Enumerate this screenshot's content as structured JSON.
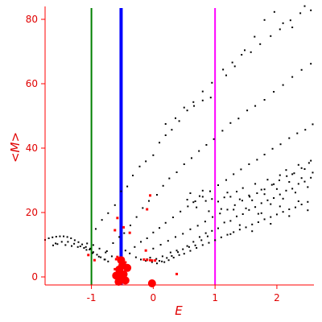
{
  "chart_data": {
    "type": "scatter",
    "title": "",
    "xlabel": "E",
    "ylabel": "<M>",
    "xlim": [
      -1.75,
      2.6
    ],
    "ylim": [
      -2.5,
      84
    ],
    "grid": false,
    "x_ticks": [
      -1,
      0,
      1,
      2
    ],
    "y_ticks": [
      0,
      20,
      40,
      60,
      80
    ],
    "colors": {
      "axis": "#ff0000",
      "points": "#000000",
      "highlight": "#ff0000",
      "vline_left": "#008000",
      "vline_mid": "#0000ff",
      "vline_right": "#ff00ff"
    },
    "vertical_lines": [
      {
        "x": -1.0,
        "color": "#008000"
      },
      {
        "x": -0.52,
        "color": "#0000ff"
      },
      {
        "x": 1.0,
        "color": "#ff00ff"
      }
    ],
    "series": [
      {
        "points": [
          [
            -1.75,
            11.5
          ],
          [
            -1.69,
            12.0
          ],
          [
            -1.63,
            12.3
          ],
          [
            -1.57,
            12.5
          ],
          [
            -1.51,
            12.6
          ],
          [
            -1.45,
            12.6
          ],
          [
            -1.39,
            12.4
          ],
          [
            -1.33,
            12.0
          ],
          [
            -1.27,
            11.4
          ],
          [
            -1.21,
            10.8
          ],
          [
            -1.15,
            10.1
          ],
          [
            -1.09,
            9.3
          ],
          [
            -1.03,
            8.5
          ],
          [
            -0.97,
            7.7
          ],
          [
            -0.91,
            6.9
          ],
          [
            -0.85,
            6.1
          ],
          [
            -0.79,
            5.4
          ],
          [
            -0.73,
            4.8
          ],
          [
            -1.58,
            10.4
          ],
          [
            -1.48,
            10.9
          ],
          [
            -1.38,
            10.9
          ],
          [
            -1.28,
            10.3
          ],
          [
            -1.18,
            9.5
          ],
          [
            -1.08,
            8.4
          ],
          [
            -0.98,
            7.4
          ],
          [
            -0.88,
            6.3
          ],
          [
            -0.78,
            5.4
          ],
          [
            -1.07,
            10.4
          ],
          [
            -0.97,
            9.9
          ],
          [
            -0.87,
            8.8
          ],
          [
            -0.77,
            7.6
          ],
          [
            -0.67,
            6.4
          ],
          [
            -0.93,
            14.9
          ],
          [
            -0.83,
            17.7
          ],
          [
            -0.73,
            19.8
          ],
          [
            -0.62,
            22.3
          ],
          [
            -0.52,
            26.6
          ],
          [
            -0.42,
            28.1
          ],
          [
            -0.33,
            31.5
          ],
          [
            -0.22,
            34.3
          ],
          [
            -0.12,
            35.9
          ],
          [
            0.0,
            37.8
          ],
          [
            0.1,
            41.7
          ],
          [
            0.2,
            44.0
          ],
          [
            0.3,
            45.7
          ],
          [
            0.42,
            48.4
          ],
          [
            0.55,
            51.7
          ],
          [
            0.66,
            53.1
          ],
          [
            0.8,
            54.8
          ],
          [
            0.93,
            55.7
          ],
          [
            1.18,
            62.6
          ],
          [
            1.32,
            65.4
          ],
          [
            1.48,
            70.4
          ],
          [
            1.64,
            74.6
          ],
          [
            1.8,
            79.8
          ],
          [
            1.96,
            82.3
          ],
          [
            2.1,
            78.8
          ],
          [
            2.25,
            77.5
          ],
          [
            2.45,
            84.1
          ],
          [
            0.2,
            47.5
          ],
          [
            0.36,
            49.3
          ],
          [
            0.5,
            52.6
          ],
          [
            0.65,
            54.3
          ],
          [
            0.8,
            57.6
          ],
          [
            0.95,
            60.3
          ],
          [
            1.13,
            64.4
          ],
          [
            1.28,
            66.6
          ],
          [
            1.43,
            69.0
          ],
          [
            1.58,
            69.8
          ],
          [
            1.73,
            72.3
          ],
          [
            1.9,
            74.8
          ],
          [
            2.05,
            76.9
          ],
          [
            2.22,
            79.7
          ],
          [
            2.38,
            81.9
          ],
          [
            2.55,
            82.8
          ],
          [
            -0.75,
            8.0
          ],
          [
            -0.65,
            10.5
          ],
          [
            -0.55,
            12.4
          ],
          [
            -0.47,
            13.6
          ],
          [
            -0.37,
            16.0
          ],
          [
            -0.27,
            18.6
          ],
          [
            -0.17,
            21.4
          ],
          [
            -0.07,
            23.6
          ],
          [
            0.06,
            25.5
          ],
          [
            0.16,
            28.3
          ],
          [
            0.26,
            30.6
          ],
          [
            0.38,
            32.5
          ],
          [
            0.5,
            35.0
          ],
          [
            0.62,
            36.9
          ],
          [
            0.74,
            39.1
          ],
          [
            0.86,
            41.0
          ],
          [
            0.98,
            42.8
          ],
          [
            1.12,
            45.4
          ],
          [
            1.25,
            47.8
          ],
          [
            1.38,
            49.2
          ],
          [
            1.52,
            51.7
          ],
          [
            1.65,
            53.1
          ],
          [
            1.8,
            55.0
          ],
          [
            1.95,
            57.5
          ],
          [
            2.1,
            59.6
          ],
          [
            2.25,
            62.1
          ],
          [
            2.4,
            64.3
          ],
          [
            2.55,
            66.2
          ],
          [
            -0.3,
            9.3
          ],
          [
            -0.2,
            10.9
          ],
          [
            -0.1,
            12.0
          ],
          [
            0.0,
            13.8
          ],
          [
            0.1,
            15.2
          ],
          [
            0.2,
            16.8
          ],
          [
            0.32,
            18.5
          ],
          [
            0.44,
            20.3
          ],
          [
            0.56,
            21.9
          ],
          [
            0.68,
            23.5
          ],
          [
            0.8,
            24.9
          ],
          [
            0.92,
            26.6
          ],
          [
            1.05,
            28.5
          ],
          [
            1.18,
            30.1
          ],
          [
            1.3,
            31.9
          ],
          [
            1.42,
            33.4
          ],
          [
            1.55,
            35.0
          ],
          [
            1.68,
            36.4
          ],
          [
            1.8,
            38.0
          ],
          [
            1.93,
            39.8
          ],
          [
            2.06,
            41.2
          ],
          [
            2.2,
            43.1
          ],
          [
            2.33,
            44.6
          ],
          [
            2.46,
            45.7
          ],
          [
            2.58,
            47.4
          ],
          [
            0.0,
            8.8
          ],
          [
            0.12,
            10.0
          ],
          [
            0.24,
            11.2
          ],
          [
            0.36,
            12.4
          ],
          [
            0.48,
            13.4
          ],
          [
            0.6,
            14.8
          ],
          [
            0.72,
            15.9
          ],
          [
            0.84,
            17.2
          ],
          [
            0.96,
            18.6
          ],
          [
            1.08,
            19.7
          ],
          [
            1.2,
            20.9
          ],
          [
            1.32,
            22.3
          ],
          [
            1.44,
            23.7
          ],
          [
            1.56,
            24.9
          ],
          [
            1.68,
            26.0
          ],
          [
            1.8,
            27.2
          ],
          [
            1.92,
            28.6
          ],
          [
            2.04,
            30.0
          ],
          [
            2.16,
            31.3
          ],
          [
            2.28,
            32.2
          ],
          [
            2.4,
            33.8
          ],
          [
            2.52,
            35.4
          ],
          [
            0.1,
            5.0
          ],
          [
            0.18,
            4.6
          ],
          [
            0.25,
            5.2
          ],
          [
            0.33,
            6.0
          ],
          [
            0.42,
            6.8
          ],
          [
            0.5,
            7.2
          ],
          [
            0.6,
            8.1
          ],
          [
            0.7,
            9.0
          ],
          [
            0.8,
            9.9
          ],
          [
            0.9,
            10.6
          ],
          [
            1.0,
            11.4
          ],
          [
            1.1,
            12.3
          ],
          [
            1.2,
            13.1
          ],
          [
            1.3,
            13.9
          ],
          [
            1.4,
            14.7
          ],
          [
            1.5,
            15.4
          ],
          [
            1.6,
            16.3
          ],
          [
            1.7,
            17.0
          ],
          [
            1.8,
            17.9
          ],
          [
            1.9,
            18.6
          ],
          [
            2.0,
            19.4
          ],
          [
            2.1,
            20.2
          ],
          [
            2.2,
            21.0
          ],
          [
            2.3,
            21.6
          ],
          [
            2.4,
            22.5
          ],
          [
            2.5,
            23.3
          ],
          [
            -0.1,
            5.5
          ],
          [
            -0.05,
            6.0
          ],
          [
            0.05,
            5.6
          ],
          [
            0.15,
            6.4
          ],
          [
            0.28,
            7.6
          ],
          [
            0.38,
            8.2
          ],
          [
            0.55,
            9.6
          ],
          [
            0.65,
            10.9
          ],
          [
            0.75,
            12.4
          ],
          [
            0.85,
            13.6
          ],
          [
            0.95,
            14.3
          ],
          [
            1.05,
            15.1
          ],
          [
            1.15,
            16.9
          ],
          [
            1.25,
            17.4
          ],
          [
            1.35,
            18.8
          ],
          [
            1.45,
            19.5
          ],
          [
            1.55,
            20.8
          ],
          [
            1.65,
            21.7
          ],
          [
            1.75,
            22.9
          ],
          [
            1.85,
            23.8
          ],
          [
            1.95,
            24.5
          ],
          [
            2.05,
            25.6
          ],
          [
            2.15,
            26.8
          ],
          [
            2.25,
            27.4
          ],
          [
            2.35,
            28.9
          ],
          [
            2.45,
            29.6
          ],
          [
            2.55,
            30.8
          ],
          [
            0.55,
            24.0
          ],
          [
            0.65,
            23.2
          ],
          [
            0.75,
            25.1
          ],
          [
            0.85,
            23.6
          ],
          [
            0.95,
            24.2
          ],
          [
            1.05,
            23.4
          ],
          [
            1.15,
            24.7
          ],
          [
            1.25,
            24.9
          ],
          [
            1.35,
            26.5
          ],
          [
            1.45,
            27.6
          ],
          [
            1.55,
            25.3
          ],
          [
            1.65,
            28.9
          ],
          [
            1.75,
            27.1
          ],
          [
            1.85,
            30.2
          ],
          [
            1.95,
            28.8
          ],
          [
            2.05,
            31.6
          ],
          [
            2.15,
            33.2
          ],
          [
            2.25,
            31.9
          ],
          [
            2.35,
            34.8
          ],
          [
            2.45,
            33.5
          ],
          [
            2.55,
            36.1
          ],
          [
            0.6,
            26.0
          ],
          [
            0.7,
            21.6
          ],
          [
            0.8,
            26.8
          ],
          [
            0.9,
            20.4
          ],
          [
            1.1,
            21.1
          ],
          [
            1.2,
            26.2
          ],
          [
            1.3,
            20.9
          ],
          [
            1.4,
            24.1
          ],
          [
            1.5,
            21.3
          ],
          [
            1.6,
            23.8
          ],
          [
            1.7,
            19.6
          ],
          [
            1.8,
            25.7
          ],
          [
            1.9,
            22.6
          ],
          [
            2.0,
            27.3
          ],
          [
            2.1,
            24.3
          ],
          [
            2.2,
            29.5
          ],
          [
            2.3,
            26.2
          ],
          [
            2.4,
            30.7
          ],
          [
            2.5,
            27.9
          ],
          [
            2.58,
            32.4
          ],
          [
            1.25,
            13.3
          ],
          [
            1.4,
            16.1
          ],
          [
            1.6,
            14.2
          ],
          [
            1.75,
            19.8
          ],
          [
            1.9,
            16.5
          ],
          [
            2.05,
            21.9
          ],
          [
            2.2,
            18.9
          ],
          [
            2.35,
            23.5
          ],
          [
            2.5,
            20.7
          ],
          [
            -0.45,
            8.2
          ],
          [
            -0.38,
            7.3
          ],
          [
            -0.28,
            6.1
          ],
          [
            -0.2,
            5.4
          ],
          [
            -0.12,
            5.0
          ],
          [
            -0.02,
            4.6
          ],
          [
            0.06,
            4.2
          ],
          [
            0.14,
            4.8
          ],
          [
            0.22,
            5.9
          ],
          [
            0.3,
            6.5
          ],
          [
            0.4,
            7.7
          ],
          [
            0.48,
            8.6
          ],
          [
            0.58,
            9.3
          ],
          [
            0.68,
            9.8
          ],
          [
            0.78,
            11.4
          ],
          [
            0.88,
            12.6
          ],
          [
            -1.55,
            10.2
          ],
          [
            -1.62,
            9.8
          ],
          [
            -1.42,
            9.9
          ],
          [
            -1.32,
            9.6
          ],
          [
            -1.22,
            9.3
          ],
          [
            -1.12,
            9.0
          ],
          [
            -1.02,
            8.8
          ]
        ]
      },
      {
        "name": "",
        "points": [
          [
            -1.05,
            6.8
          ],
          [
            -0.95,
            5.2
          ],
          [
            -0.62,
            14.5
          ],
          [
            -0.58,
            18.3
          ],
          [
            -0.48,
            15.4
          ],
          [
            -0.38,
            13.7
          ],
          [
            -0.1,
            21.0
          ],
          [
            -0.05,
            25.3
          ],
          [
            -0.12,
            8.2
          ],
          [
            -0.15,
            5.4
          ],
          [
            -0.1,
            5.3
          ],
          [
            -0.05,
            5.2
          ],
          [
            -0.02,
            5.1
          ],
          [
            0.03,
            5.1
          ],
          [
            -0.58,
            6.2
          ],
          [
            -0.6,
            5.5
          ],
          [
            -0.5,
            3.2
          ],
          [
            -0.48,
            1.5
          ],
          [
            -0.55,
            0.8
          ],
          [
            -0.52,
            0.3
          ],
          [
            -0.45,
            1.0
          ],
          [
            -0.02,
            -2.3
          ],
          [
            -0.45,
            4.5
          ],
          [
            -0.62,
            2.4
          ],
          [
            0.38,
            0.9
          ]
        ]
      }
    ],
    "blob_points": [
      [
        -0.52,
        5.2
      ],
      [
        -0.5,
        3.5
      ],
      [
        -0.55,
        2.3
      ],
      [
        -0.48,
        0.8
      ],
      [
        -0.5,
        -0.6
      ],
      [
        -0.56,
        -1.5
      ],
      [
        -0.45,
        -1.1
      ],
      [
        -0.6,
        0.4
      ],
      [
        -0.42,
        2.8
      ],
      [
        -0.52,
        -1.0
      ],
      [
        -0.02,
        -2.0
      ]
    ]
  }
}
